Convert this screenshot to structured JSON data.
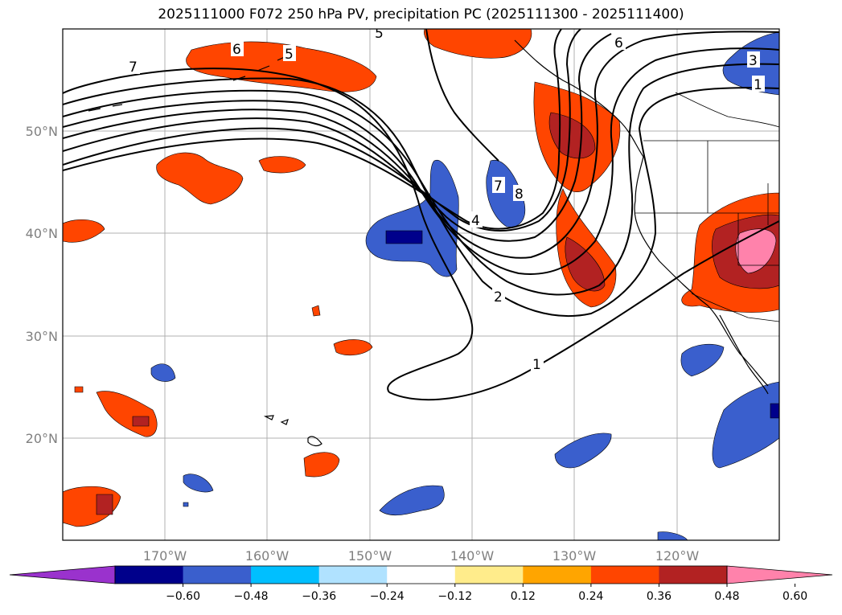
{
  "title": "2025111000 F072 250 hPa PV, precipitation PC (2025111300 - 2025111400)",
  "lat_labels": [
    "50°N",
    "40°N",
    "30°N",
    "20°N"
  ],
  "lon_labels": [
    "170°W",
    "160°W",
    "150°W",
    "140°W",
    "130°W",
    "120°W"
  ],
  "contour_labels": [
    "7",
    "6",
    "5",
    "5",
    "6",
    "3",
    "1",
    "7",
    "8",
    "4",
    "2",
    "1"
  ],
  "colorbar": {
    "ticks": [
      "−0.60",
      "−0.48",
      "−0.36",
      "−0.24",
      "−0.12",
      "0.12",
      "0.24",
      "0.36",
      "0.48",
      "0.60"
    ],
    "colors": [
      "#9a32cd",
      "#00008b",
      "#3a5fcd",
      "#00bfff",
      "#b0e2ff",
      "#ffffff",
      "#ffec8b",
      "#ffa500",
      "#ff4500",
      "#b22222",
      "#ff82ab"
    ]
  }
}
